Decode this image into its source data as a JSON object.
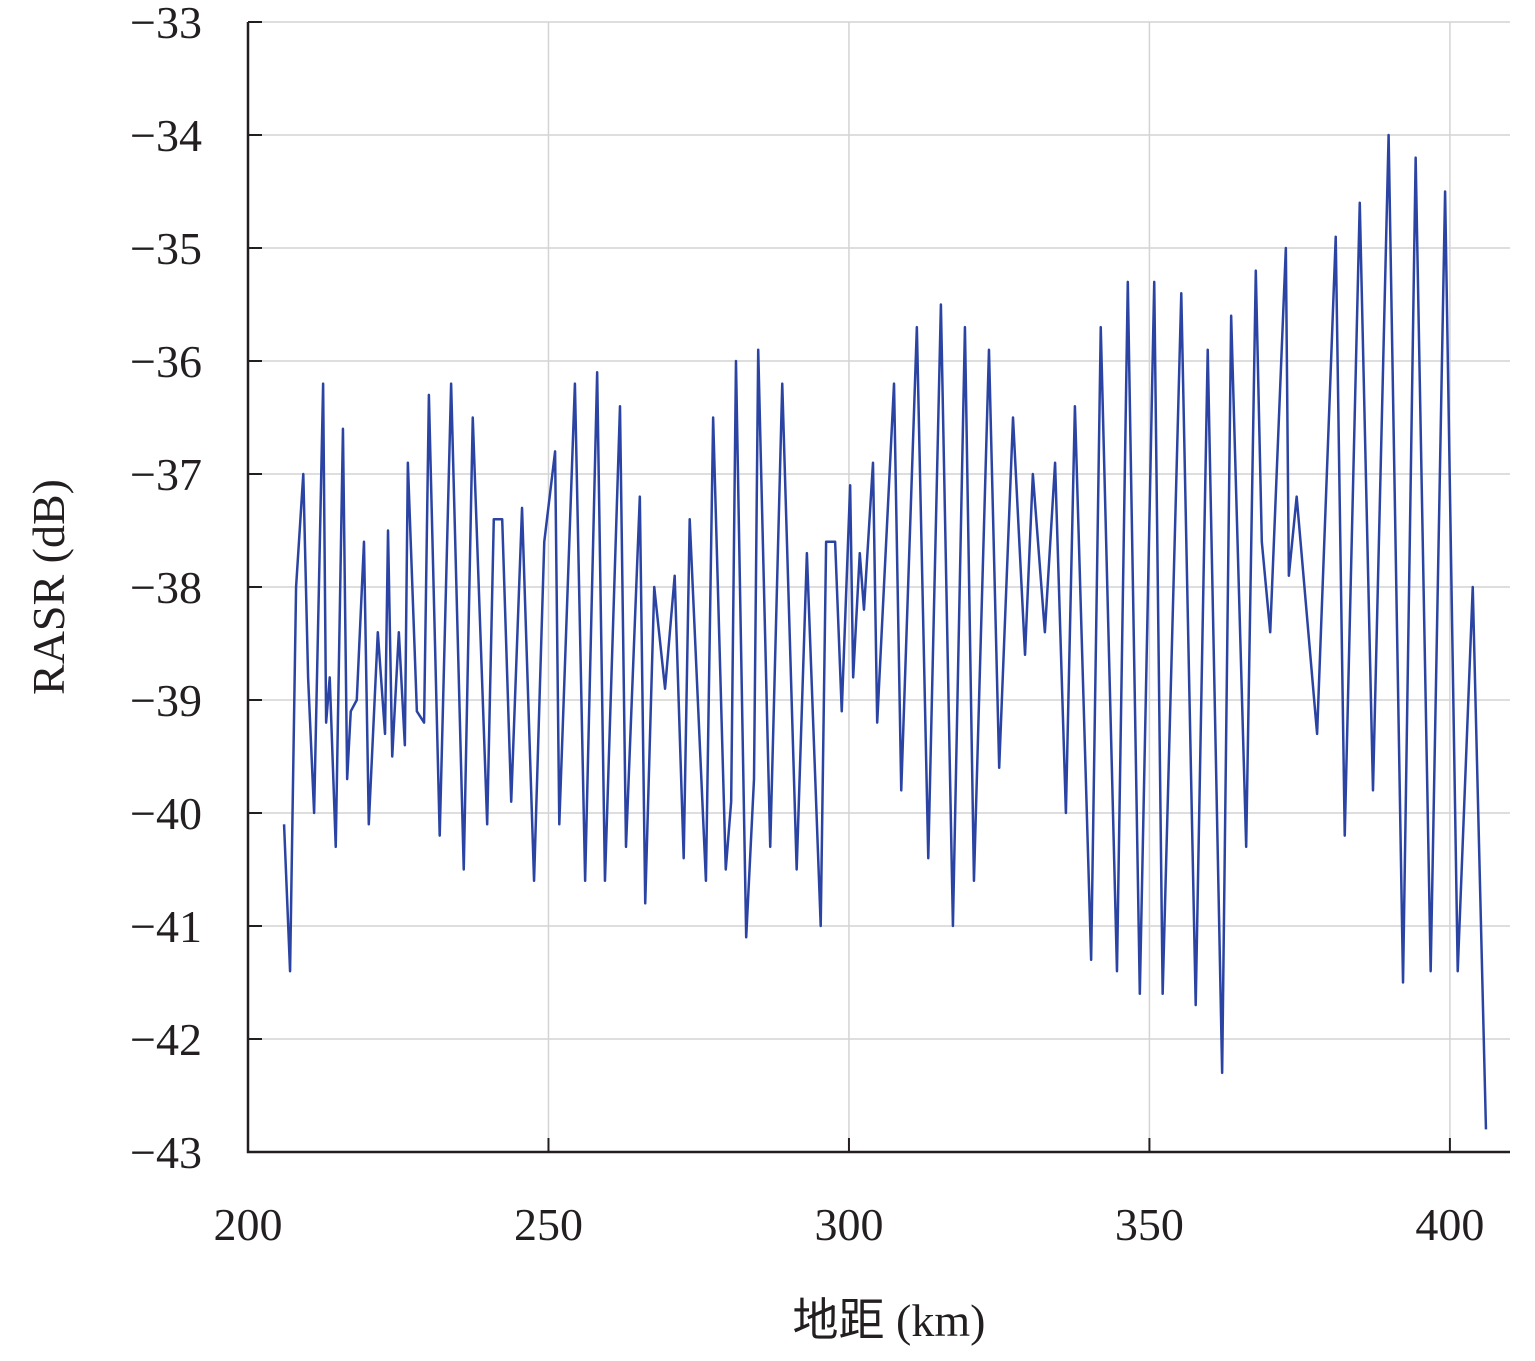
{
  "chart_data": {
    "type": "line",
    "x_label": "地距 (km)",
    "y_label": "RASR (dB)",
    "xlim": [
      200,
      410
    ],
    "ylim": [
      -43,
      -33
    ],
    "xticks": [
      200,
      250,
      300,
      350,
      400
    ],
    "yticks": [
      {
        "value": -43,
        "label": "−43"
      },
      {
        "value": -42,
        "label": "−42"
      },
      {
        "value": -41,
        "label": "−41"
      },
      {
        "value": -40,
        "label": "−40"
      },
      {
        "value": -39,
        "label": "−39"
      },
      {
        "value": -38,
        "label": "−38"
      },
      {
        "value": -37,
        "label": "−37"
      },
      {
        "value": -36,
        "label": "−36"
      },
      {
        "value": -35,
        "label": "−35"
      },
      {
        "value": -34,
        "label": "−34"
      },
      {
        "value": -33,
        "label": "−33"
      }
    ],
    "grid": true,
    "x": [
      206.0,
      207.0,
      208.0,
      209.2,
      210.0,
      211.0,
      211.8,
      212.5,
      213.0,
      213.6,
      214.6,
      215.8,
      216.5,
      217.1,
      218.1,
      219.3,
      220.1,
      221.6,
      222.8,
      223.3,
      224.0,
      225.1,
      226.1,
      226.6,
      228.1,
      229.3,
      230.1,
      231.9,
      233.8,
      235.9,
      237.4,
      239.8,
      240.9,
      242.3,
      243.8,
      245.6,
      247.6,
      249.3,
      251.1,
      251.8,
      254.4,
      256.1,
      258.1,
      259.4,
      261.9,
      262.9,
      265.2,
      266.1,
      267.6,
      269.4,
      271.0,
      272.5,
      273.5,
      276.2,
      277.4,
      279.5,
      280.4,
      281.2,
      282.9,
      284.2,
      284.9,
      286.9,
      288.9,
      291.3,
      293.0,
      295.3,
      296.2,
      297.7,
      298.8,
      300.2,
      300.7,
      301.8,
      302.5,
      304.0,
      304.7,
      307.5,
      308.7,
      311.3,
      313.2,
      315.3,
      317.3,
      319.3,
      320.8,
      323.3,
      325.0,
      327.3,
      329.3,
      330.6,
      332.6,
      334.3,
      336.1,
      337.6,
      340.3,
      341.9,
      344.6,
      346.4,
      348.4,
      350.8,
      352.2,
      355.3,
      357.7,
      359.7,
      362.1,
      363.6,
      366.1,
      367.7,
      368.7,
      370.1,
      372.7,
      373.2,
      374.5,
      377.9,
      381.0,
      382.5,
      385.0,
      387.2,
      389.8,
      392.2,
      394.3,
      396.8,
      399.2,
      401.3,
      403.8,
      406.0
    ],
    "series": [
      {
        "color": "#2b44a3",
        "values": [
          -40.1,
          -41.4,
          -38.0,
          -37.0,
          -38.8,
          -40.0,
          -38.0,
          -36.2,
          -39.2,
          -38.8,
          -40.3,
          -36.6,
          -39.7,
          -39.1,
          -39.0,
          -37.6,
          -40.1,
          -38.4,
          -39.3,
          -37.5,
          -39.5,
          -38.4,
          -39.4,
          -36.9,
          -39.1,
          -39.2,
          -36.3,
          -40.2,
          -36.2,
          -40.5,
          -36.5,
          -40.1,
          -37.4,
          -37.4,
          -39.9,
          -37.3,
          -40.6,
          -37.6,
          -36.8,
          -40.1,
          -36.2,
          -40.6,
          -36.1,
          -40.6,
          -36.4,
          -40.3,
          -37.2,
          -40.8,
          -38.0,
          -38.9,
          -37.9,
          -40.4,
          -37.4,
          -40.6,
          -36.5,
          -40.5,
          -39.9,
          -36.0,
          -41.1,
          -39.7,
          -35.9,
          -40.3,
          -36.2,
          -40.5,
          -37.7,
          -41.0,
          -37.6,
          -37.6,
          -39.1,
          -37.1,
          -38.8,
          -37.7,
          -38.2,
          -36.9,
          -39.2,
          -36.2,
          -39.8,
          -35.7,
          -40.4,
          -35.5,
          -41.0,
          -35.7,
          -40.6,
          -35.9,
          -39.6,
          -36.5,
          -38.6,
          -37.0,
          -38.4,
          -36.9,
          -40.0,
          -36.4,
          -41.3,
          -35.7,
          -41.4,
          -35.3,
          -41.6,
          -35.3,
          -41.6,
          -35.4,
          -41.7,
          -35.9,
          -42.3,
          -35.6,
          -40.3,
          -35.2,
          -37.6,
          -38.4,
          -35.0,
          -37.9,
          -37.2,
          -39.3,
          -34.9,
          -40.2,
          -34.6,
          -39.8,
          -34.0,
          -41.5,
          -34.2,
          -41.4,
          -34.5,
          -41.4,
          -38.0,
          -42.8
        ]
      }
    ]
  }
}
